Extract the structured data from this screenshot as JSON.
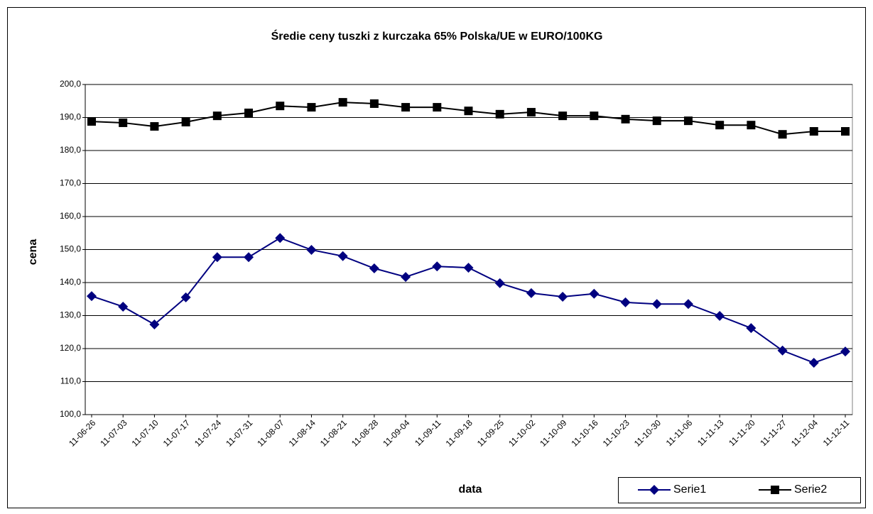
{
  "chart_data": {
    "type": "line",
    "title": "Średie ceny tuszki z kurczaka 65% Polska/UE w EURO/100KG",
    "x_label": "data",
    "y_label": "cena",
    "categories": [
      "11-06-26",
      "11-07-03",
      "11-07-10",
      "11-07-17",
      "11-07-24",
      "11-07-31",
      "11-08-07",
      "11-08-14",
      "11-08-21",
      "11-08-28",
      "11-09-04",
      "11-09-11",
      "11-09-18",
      "11-09-25",
      "11-10-02",
      "11-10-09",
      "11-10-16",
      "11-10-23",
      "11-10-30",
      "11-11-06",
      "11-11-13",
      "11-11-20",
      "11-11-27",
      "11-12-04",
      "11-12-11"
    ],
    "series": [
      {
        "name": "Serie1",
        "color": "#000080",
        "marker": "diamond",
        "values": [
          135.9,
          132.7,
          127.3,
          135.5,
          147.7,
          147.7,
          153.5,
          149.9,
          148.0,
          144.3,
          141.7,
          144.9,
          144.5,
          139.8,
          136.8,
          135.7,
          136.6,
          134.0,
          133.5,
          133.5,
          129.9,
          126.2,
          119.4,
          115.7,
          119.1
        ]
      },
      {
        "name": "Serie2",
        "color": "#000000",
        "marker": "square",
        "values": [
          188.8,
          188.4,
          187.3,
          188.6,
          190.5,
          191.4,
          193.5,
          193.1,
          194.6,
          194.2,
          193.1,
          193.1,
          192.0,
          191.0,
          191.6,
          190.5,
          190.5,
          189.5,
          189.0,
          189.0,
          187.7,
          187.7,
          184.9,
          185.8,
          185.8
        ]
      }
    ],
    "ylim": [
      100,
      200
    ],
    "yticks": [
      {
        "value": 100,
        "label": "100,0"
      },
      {
        "value": 110,
        "label": "110,0"
      },
      {
        "value": 120,
        "label": "120,0"
      },
      {
        "value": 130,
        "label": "130,0"
      },
      {
        "value": 140,
        "label": "140,0"
      },
      {
        "value": 150,
        "label": "150,0"
      },
      {
        "value": 160,
        "label": "160,0"
      },
      {
        "value": 170,
        "label": "170,0"
      },
      {
        "value": 180,
        "label": "180,0"
      },
      {
        "value": 190,
        "label": "190,0"
      },
      {
        "value": 200,
        "label": "200,0"
      }
    ],
    "grid": true,
    "legend": "bottom-right"
  }
}
